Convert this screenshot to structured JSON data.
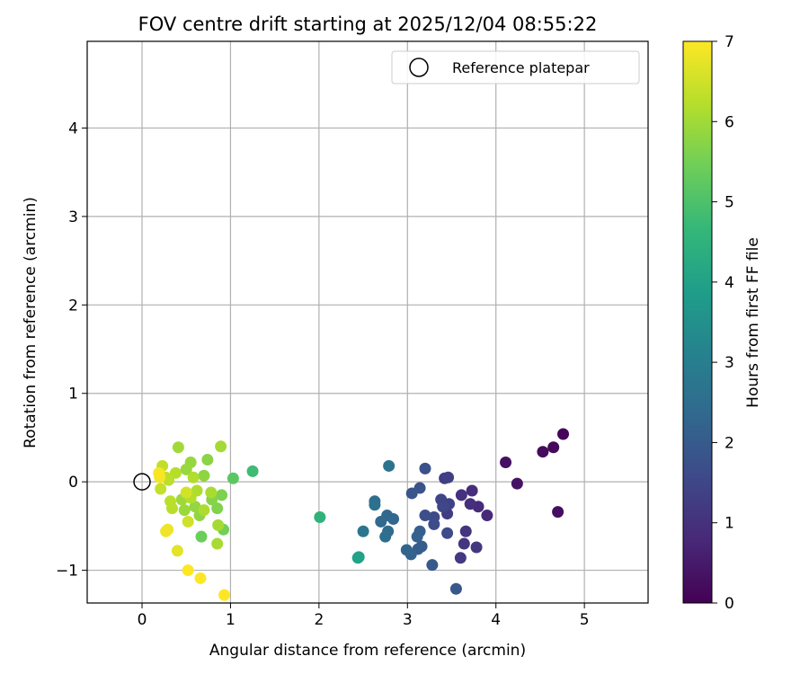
{
  "chart_data": {
    "type": "scatter",
    "title": "FOV centre drift starting at 2025/12/04 08:55:22",
    "xlabel": "Angular distance from reference (arcmin)",
    "ylabel": "Rotation from reference (arcmin)",
    "xlim": [
      -0.62,
      5.72
    ],
    "ylim": [
      -1.37,
      4.98
    ],
    "xticks": [
      "0",
      "1",
      "2",
      "3",
      "4",
      "5"
    ],
    "yticks": [
      "−1",
      "0",
      "1",
      "2",
      "3",
      "4"
    ],
    "grid": true,
    "legend": {
      "placement": "top-right",
      "entries": [
        {
          "label": "Reference platepar",
          "marker": "open-circle"
        }
      ]
    },
    "reference_point": {
      "x": 0,
      "y": 0
    },
    "colorbar": {
      "label": "Hours from first FF file",
      "range": [
        0,
        7
      ],
      "ticks": [
        "0",
        "1",
        "2",
        "3",
        "4",
        "5",
        "6",
        "7"
      ],
      "colormap": "viridis"
    },
    "colormap_stops": [
      "#440154",
      "#482878",
      "#3e4989",
      "#31688e",
      "#26828e",
      "#1f9e89",
      "#35b779",
      "#6ece58",
      "#b5de2b",
      "#fde725"
    ],
    "points": [
      {
        "x": 4.76,
        "y": 0.54,
        "h": 0.1
      },
      {
        "x": 4.65,
        "y": 0.39,
        "h": 0.15
      },
      {
        "x": 4.53,
        "y": 0.34,
        "h": 0.2
      },
      {
        "x": 4.7,
        "y": -0.34,
        "h": 0.25
      },
      {
        "x": 4.11,
        "y": 0.22,
        "h": 0.3
      },
      {
        "x": 4.24,
        "y": -0.02,
        "h": 0.35
      },
      {
        "x": 3.9,
        "y": -0.38,
        "h": 0.8
      },
      {
        "x": 3.8,
        "y": -0.28,
        "h": 0.85
      },
      {
        "x": 3.73,
        "y": -0.1,
        "h": 0.9
      },
      {
        "x": 3.71,
        "y": -0.25,
        "h": 0.95
      },
      {
        "x": 3.61,
        "y": -0.15,
        "h": 1.0
      },
      {
        "x": 3.66,
        "y": -0.56,
        "h": 1.05
      },
      {
        "x": 3.64,
        "y": -0.7,
        "h": 1.1
      },
      {
        "x": 3.78,
        "y": -0.74,
        "h": 1.15
      },
      {
        "x": 3.6,
        "y": -0.86,
        "h": 1.2
      },
      {
        "x": 3.45,
        "y": -0.36,
        "h": 1.25
      },
      {
        "x": 3.42,
        "y": 0.04,
        "h": 1.3
      },
      {
        "x": 3.46,
        "y": 0.05,
        "h": 1.35
      },
      {
        "x": 3.47,
        "y": -0.25,
        "h": 1.4
      },
      {
        "x": 3.38,
        "y": -0.2,
        "h": 1.45
      },
      {
        "x": 3.4,
        "y": -0.28,
        "h": 1.5
      },
      {
        "x": 3.3,
        "y": -0.4,
        "h": 1.55
      },
      {
        "x": 3.45,
        "y": -0.58,
        "h": 1.6
      },
      {
        "x": 3.3,
        "y": -0.48,
        "h": 1.65
      },
      {
        "x": 3.2,
        "y": -0.38,
        "h": 1.7
      },
      {
        "x": 3.2,
        "y": 0.15,
        "h": 1.75
      },
      {
        "x": 3.14,
        "y": -0.07,
        "h": 1.8
      },
      {
        "x": 3.05,
        "y": -0.13,
        "h": 1.85
      },
      {
        "x": 3.55,
        "y": -1.21,
        "h": 1.9
      },
      {
        "x": 3.28,
        "y": -0.94,
        "h": 1.95
      },
      {
        "x": 3.16,
        "y": -0.73,
        "h": 2.0
      },
      {
        "x": 3.12,
        "y": -0.76,
        "h": 2.05
      },
      {
        "x": 3.14,
        "y": -0.56,
        "h": 2.1
      },
      {
        "x": 3.11,
        "y": -0.62,
        "h": 2.15
      },
      {
        "x": 3.04,
        "y": -0.82,
        "h": 2.2
      },
      {
        "x": 2.99,
        "y": -0.77,
        "h": 2.25
      },
      {
        "x": 2.84,
        "y": -0.42,
        "h": 2.3
      },
      {
        "x": 2.77,
        "y": -0.38,
        "h": 2.35
      },
      {
        "x": 2.7,
        "y": -0.45,
        "h": 2.4
      },
      {
        "x": 2.78,
        "y": -0.56,
        "h": 2.45
      },
      {
        "x": 2.75,
        "y": -0.62,
        "h": 2.5
      },
      {
        "x": 2.63,
        "y": -0.22,
        "h": 2.55
      },
      {
        "x": 2.63,
        "y": -0.26,
        "h": 2.6
      },
      {
        "x": 2.79,
        "y": 0.18,
        "h": 2.65
      },
      {
        "x": 2.5,
        "y": -0.56,
        "h": 2.75
      },
      {
        "x": 2.45,
        "y": -0.85,
        "h": 3.9
      },
      {
        "x": 2.44,
        "y": -0.86,
        "h": 4.0
      },
      {
        "x": 2.01,
        "y": -0.4,
        "h": 4.5
      },
      {
        "x": 1.25,
        "y": 0.12,
        "h": 4.8
      },
      {
        "x": 1.03,
        "y": 0.04,
        "h": 5.2
      },
      {
        "x": 0.67,
        "y": -0.62,
        "h": 5.4
      },
      {
        "x": 0.92,
        "y": -0.54,
        "h": 5.5
      },
      {
        "x": 0.9,
        "y": -0.15,
        "h": 5.6
      },
      {
        "x": 0.85,
        "y": -0.3,
        "h": 5.65
      },
      {
        "x": 0.79,
        "y": -0.2,
        "h": 5.7
      },
      {
        "x": 0.74,
        "y": 0.25,
        "h": 5.75
      },
      {
        "x": 0.7,
        "y": 0.07,
        "h": 5.8
      },
      {
        "x": 0.65,
        "y": -0.38,
        "h": 5.82
      },
      {
        "x": 0.6,
        "y": -0.28,
        "h": 5.85
      },
      {
        "x": 0.55,
        "y": 0.22,
        "h": 5.88
      },
      {
        "x": 0.5,
        "y": 0.14,
        "h": 5.9
      },
      {
        "x": 0.48,
        "y": -0.32,
        "h": 5.93
      },
      {
        "x": 0.45,
        "y": -0.2,
        "h": 5.96
      },
      {
        "x": 0.41,
        "y": 0.39,
        "h": 6.0
      },
      {
        "x": 0.89,
        "y": 0.4,
        "h": 6.02
      },
      {
        "x": 0.86,
        "y": -0.49,
        "h": 6.05
      },
      {
        "x": 0.85,
        "y": -0.7,
        "h": 6.08
      },
      {
        "x": 0.78,
        "y": -0.12,
        "h": 6.1
      },
      {
        "x": 0.7,
        "y": -0.32,
        "h": 6.12
      },
      {
        "x": 0.62,
        "y": -0.1,
        "h": 6.15
      },
      {
        "x": 0.58,
        "y": 0.05,
        "h": 6.18
      },
      {
        "x": 0.55,
        "y": -0.18,
        "h": 6.2
      },
      {
        "x": 0.38,
        "y": 0.1,
        "h": 6.22
      },
      {
        "x": 0.34,
        "y": -0.3,
        "h": 6.25
      },
      {
        "x": 0.32,
        "y": -0.22,
        "h": 6.28
      },
      {
        "x": 0.3,
        "y": 0.02,
        "h": 6.3
      },
      {
        "x": 0.27,
        "y": 0.05,
        "h": 6.32
      },
      {
        "x": 0.23,
        "y": 0.18,
        "h": 6.35
      },
      {
        "x": 0.21,
        "y": -0.08,
        "h": 6.4
      },
      {
        "x": 0.52,
        "y": -0.45,
        "h": 6.5
      },
      {
        "x": 0.5,
        "y": -0.12,
        "h": 6.55
      },
      {
        "x": 0.4,
        "y": -0.78,
        "h": 6.7
      },
      {
        "x": 0.29,
        "y": -0.54,
        "h": 6.8
      },
      {
        "x": 0.27,
        "y": -0.56,
        "h": 6.85
      },
      {
        "x": 0.2,
        "y": 0.05,
        "h": 6.9
      },
      {
        "x": 0.19,
        "y": 0.1,
        "h": 6.95
      },
      {
        "x": 0.52,
        "y": -1.0,
        "h": 7.0
      },
      {
        "x": 0.66,
        "y": -1.09,
        "h": 7.0
      },
      {
        "x": 0.93,
        "y": -1.28,
        "h": 7.0
      }
    ]
  }
}
